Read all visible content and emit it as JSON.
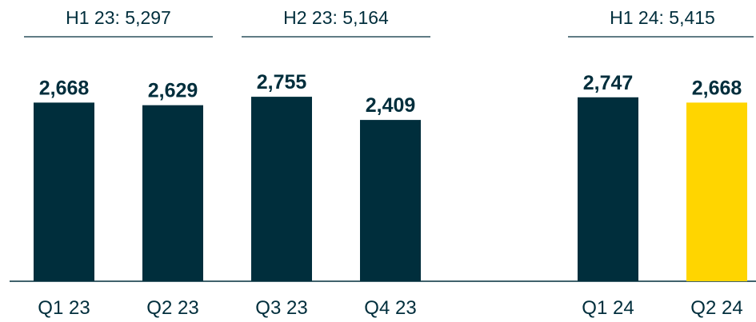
{
  "chart_data": {
    "type": "bar",
    "categories": [
      "Q1 23",
      "Q2 23",
      "Q3 23",
      "Q4 23",
      null,
      "Q1 24",
      "Q2 24"
    ],
    "values": [
      2668,
      2629,
      2755,
      2409,
      null,
      2747,
      2668
    ],
    "value_labels": [
      "2,668",
      "2,629",
      "2,755",
      "2,409",
      null,
      "2,747",
      "2,668"
    ],
    "colors": [
      "#002e3c",
      "#002e3c",
      "#002e3c",
      "#002e3c",
      null,
      "#002e3c",
      "#ffd500"
    ],
    "ylim": [
      0,
      4200
    ],
    "annotations": [
      "H1 23: 5,297",
      "H2 23: 5,164",
      "H1 24: 5,415"
    ]
  }
}
